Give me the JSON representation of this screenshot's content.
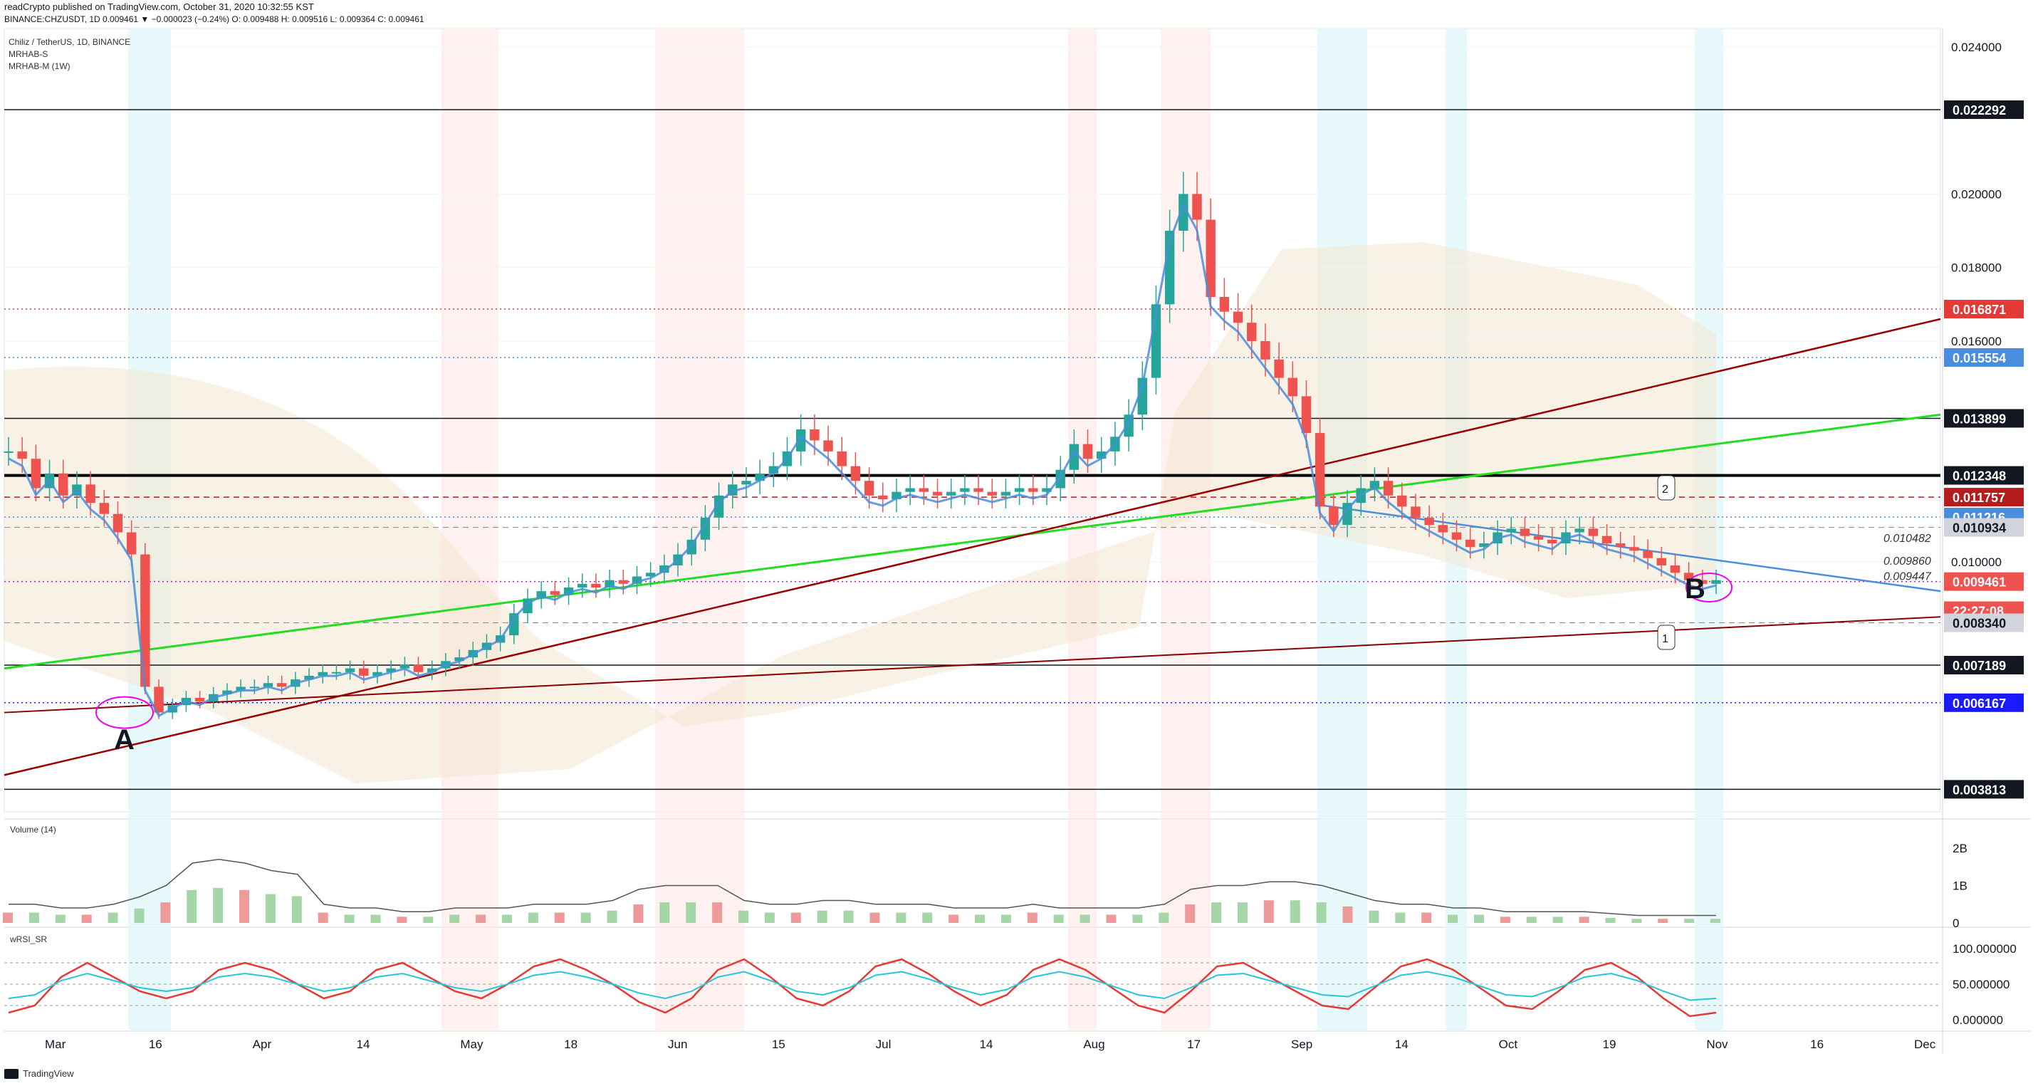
{
  "header": {
    "publish_line": "readCrypto published on TradingView.com, October 31, 2020 10:32:55 KST",
    "symbol_line": "BINANCE:CHZUSDT, 1D 0.009461 ▼ −0.000023 (−0.24%) O: 0.009488 H: 0.009516 L: 0.009364 C: 0.009461"
  },
  "legend": {
    "title": "Chiliz / TetherUS, 1D, BINANCE",
    "indicator1": "MRHAB-S",
    "indicator2": "MRHAB-M (1W)"
  },
  "panels": {
    "volume_label": "Volume (14)",
    "rsi_label": "wRSI_SR"
  },
  "footer": {
    "brand": "TradingView"
  },
  "annotations": {
    "point_a": "A",
    "point_b": "B",
    "marker_1": "1",
    "marker_2": "2"
  },
  "colors": {
    "up": "#26a69a",
    "down": "#ef5350",
    "grid": "#f0f3fa",
    "green_line": "#00e600",
    "red_line": "#990000",
    "blue_line": "#4a8ddc"
  },
  "chart_data": {
    "type": "candlestick",
    "symbol": "CHZUSDT",
    "timeframe": "1D",
    "exchange": "BINANCE",
    "ylim": [
      0.0032,
      0.0245
    ],
    "y_ticks": [
      "0.024000",
      "0.020000",
      "0.018000",
      "0.016000",
      "0.010000"
    ],
    "x_ticks": [
      "Mar",
      "16",
      "Apr",
      "14",
      "May",
      "18",
      "Jun",
      "15",
      "Jul",
      "14",
      "Aug",
      "17",
      "Sep",
      "14",
      "Oct",
      "19",
      "Nov",
      "16",
      "Dec"
    ],
    "price_labels": [
      {
        "value": "0.022292",
        "level": 0.022292,
        "bg": "#131722",
        "fg": "#ffffff"
      },
      {
        "value": "0.016871",
        "level": 0.016871,
        "bg": "#e53935",
        "fg": "#ffffff"
      },
      {
        "value": "0.015554",
        "level": 0.015554,
        "bg": "#4a8ddc",
        "fg": "#ffffff"
      },
      {
        "value": "0.013899",
        "level": 0.013899,
        "bg": "#131722",
        "fg": "#ffffff"
      },
      {
        "value": "0.012348",
        "level": 0.012348,
        "bg": "#131722",
        "fg": "#ffffff"
      },
      {
        "value": "0.011757",
        "level": 0.011757,
        "bg": "#b71c1c",
        "fg": "#ffffff"
      },
      {
        "value": "0.011216",
        "level": 0.011216,
        "bg": "#4a8ddc",
        "fg": "#ffffff"
      },
      {
        "value": "0.010934",
        "level": 0.010934,
        "bg": "#d1d4dc",
        "fg": "#131722"
      },
      {
        "value": "0.009461",
        "level": 0.009461,
        "bg": "#ef5350",
        "fg": "#ffffff"
      },
      {
        "value": "22:27:08",
        "level": 0.00867,
        "bg": "#ef5350",
        "fg": "#ffffff"
      },
      {
        "value": "0.008340",
        "level": 0.00834,
        "bg": "#d1d4dc",
        "fg": "#131722"
      },
      {
        "value": "0.007189",
        "level": 0.007189,
        "bg": "#131722",
        "fg": "#ffffff"
      },
      {
        "value": "0.006167",
        "level": 0.006167,
        "bg": "#1a1aff",
        "fg": "#ffffff"
      },
      {
        "value": "0.003813",
        "level": 0.003813,
        "bg": "#131722",
        "fg": "#ffffff"
      }
    ],
    "inline_labels": [
      {
        "text": "0.010482",
        "level": 0.010482
      },
      {
        "text": "0.009860",
        "level": 0.00986
      },
      {
        "text": "0.009447",
        "level": 0.009447
      }
    ],
    "horizontal_lines": [
      {
        "level": 0.022292,
        "color": "#131722",
        "style": "solid",
        "width": 1.5
      },
      {
        "level": 0.016871,
        "color": "#e53935",
        "style": "dotted",
        "width": 1.5
      },
      {
        "level": 0.015554,
        "color": "#4a8ddc",
        "style": "dotted",
        "width": 1.5
      },
      {
        "level": 0.013899,
        "color": "#131722",
        "style": "solid",
        "width": 1.5
      },
      {
        "level": 0.012348,
        "color": "#000000",
        "style": "solid",
        "width": 4
      },
      {
        "level": 0.011757,
        "color": "#b71c1c",
        "style": "dashed",
        "width": 1.5
      },
      {
        "level": 0.011216,
        "color": "#4a8ddc",
        "style": "dotted",
        "width": 1.5
      },
      {
        "level": 0.010934,
        "color": "#888888",
        "style": "dashed",
        "width": 1
      },
      {
        "level": 0.009461,
        "color": "#9c27b0",
        "style": "dotted",
        "width": 1.5
      },
      {
        "level": 0.00834,
        "color": "#888888",
        "style": "dashed",
        "width": 1
      },
      {
        "level": 0.007189,
        "color": "#131722",
        "style": "solid",
        "width": 1.5
      },
      {
        "level": 0.006167,
        "color": "#1a1aff",
        "style": "dotted",
        "width": 1.5
      },
      {
        "level": 0.003813,
        "color": "#131722",
        "style": "solid",
        "width": 1.5
      }
    ],
    "close_series": [
      0.013,
      0.0128,
      0.012,
      0.0124,
      0.0118,
      0.0121,
      0.0116,
      0.0113,
      0.0108,
      0.0102,
      0.0066,
      0.0059,
      0.0061,
      0.0063,
      0.0062,
      0.0064,
      0.0065,
      0.0066,
      0.0066,
      0.0067,
      0.0066,
      0.0068,
      0.0069,
      0.007,
      0.007,
      0.0071,
      0.0069,
      0.007,
      0.0071,
      0.0072,
      0.007,
      0.0071,
      0.0073,
      0.0074,
      0.0076,
      0.0078,
      0.008,
      0.0086,
      0.009,
      0.0092,
      0.0091,
      0.0093,
      0.0094,
      0.0093,
      0.0095,
      0.0094,
      0.0096,
      0.0097,
      0.0099,
      0.0102,
      0.0106,
      0.0112,
      0.0118,
      0.0121,
      0.0122,
      0.0124,
      0.0126,
      0.013,
      0.0136,
      0.0133,
      0.013,
      0.0126,
      0.0122,
      0.0118,
      0.0117,
      0.0119,
      0.012,
      0.0119,
      0.0118,
      0.0119,
      0.012,
      0.0119,
      0.0118,
      0.0119,
      0.012,
      0.0119,
      0.012,
      0.0125,
      0.0132,
      0.0128,
      0.013,
      0.0134,
      0.014,
      0.015,
      0.017,
      0.019,
      0.02,
      0.0193,
      0.0172,
      0.0168,
      0.0165,
      0.016,
      0.0155,
      0.015,
      0.0145,
      0.0135,
      0.0115,
      0.011,
      0.0116,
      0.012,
      0.0122,
      0.0118,
      0.0115,
      0.0112,
      0.011,
      0.0108,
      0.0106,
      0.0104,
      0.0105,
      0.0108,
      0.0109,
      0.0107,
      0.0106,
      0.0105,
      0.0108,
      0.0109,
      0.0107,
      0.0105,
      0.0104,
      0.0103,
      0.0101,
      0.0099,
      0.0097,
      0.0095,
      0.0094,
      0.0095
    ],
    "volume_ylim": [
      0,
      2.4
    ],
    "volume_ticks": [
      "2B",
      "1B",
      "0"
    ],
    "volume_ma": [
      0.5,
      0.5,
      0.4,
      0.4,
      0.5,
      0.7,
      1.0,
      1.6,
      1.7,
      1.6,
      1.4,
      1.3,
      0.5,
      0.4,
      0.4,
      0.3,
      0.3,
      0.4,
      0.4,
      0.4,
      0.5,
      0.5,
      0.5,
      0.6,
      0.9,
      1.0,
      1.0,
      1.0,
      0.6,
      0.5,
      0.5,
      0.6,
      0.6,
      0.5,
      0.5,
      0.5,
      0.4,
      0.4,
      0.4,
      0.5,
      0.4,
      0.4,
      0.4,
      0.4,
      0.5,
      0.9,
      1.0,
      1.0,
      1.1,
      1.1,
      1.0,
      0.8,
      0.6,
      0.5,
      0.5,
      0.4,
      0.4,
      0.3,
      0.3,
      0.3,
      0.3,
      0.25,
      0.2,
      0.2,
      0.2,
      0.2
    ],
    "rsi_ylim": [
      -10,
      110
    ],
    "rsi_ticks": [
      "100.000000",
      "50.000000",
      "0.000000"
    ],
    "rsi_levels": [
      80,
      50,
      20
    ],
    "rsi_series": [
      10,
      20,
      60,
      80,
      60,
      40,
      30,
      40,
      70,
      80,
      70,
      50,
      30,
      40,
      70,
      80,
      60,
      40,
      30,
      50,
      75,
      85,
      70,
      50,
      25,
      10,
      30,
      70,
      85,
      60,
      30,
      20,
      40,
      75,
      85,
      65,
      40,
      20,
      35,
      70,
      85,
      70,
      45,
      20,
      10,
      40,
      75,
      80,
      60,
      40,
      20,
      15,
      45,
      75,
      85,
      70,
      45,
      20,
      15,
      40,
      70,
      80,
      60,
      30,
      5,
      10
    ]
  }
}
